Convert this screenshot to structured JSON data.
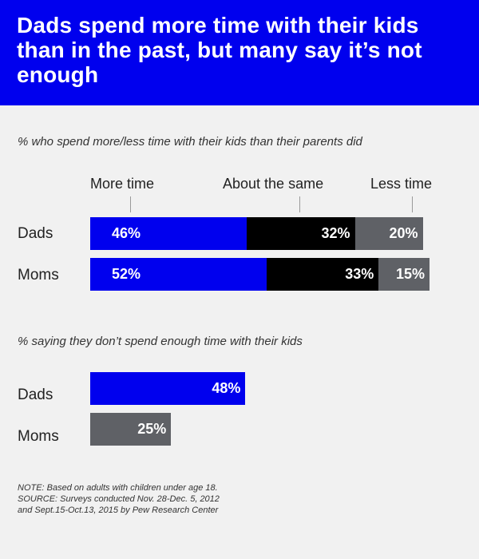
{
  "title": "Dads spend more time with their kids than in the past, but many say it’s not enough",
  "colors": {
    "header_bg": "#0000ee",
    "more_time": "#0000ee",
    "about_same": "#000000",
    "less_time": "#5f6166",
    "moms_not_enough": "#5f6166"
  },
  "chart_data": [
    {
      "type": "bar",
      "stacked": true,
      "orientation": "horizontal",
      "subtitle": "% who spend more/less time with their kids than their parents did",
      "categories": [
        "Dads",
        "Moms"
      ],
      "series": [
        {
          "name": "More time",
          "values": [
            46,
            52
          ],
          "labels": [
            "46%",
            "52%"
          ]
        },
        {
          "name": "About the same",
          "values": [
            32,
            33
          ],
          "labels": [
            "32%",
            "33%"
          ]
        },
        {
          "name": "Less time",
          "values": [
            20,
            15
          ],
          "labels": [
            "20%",
            "15%"
          ]
        }
      ]
    },
    {
      "type": "bar",
      "orientation": "horizontal",
      "subtitle": "% saying they don’t spend enough time with their kids",
      "categories": [
        "Dads",
        "Moms"
      ],
      "values": [
        48,
        25
      ],
      "labels": [
        "48%",
        "25%"
      ]
    }
  ],
  "note_lines": [
    "NOTE: Based on adults with children under age 18.",
    "SOURCE: Surveys conducted Nov. 28-Dec. 5, 2012",
    "and Sept.15-Oct.13, 2015 by Pew Research Center"
  ]
}
